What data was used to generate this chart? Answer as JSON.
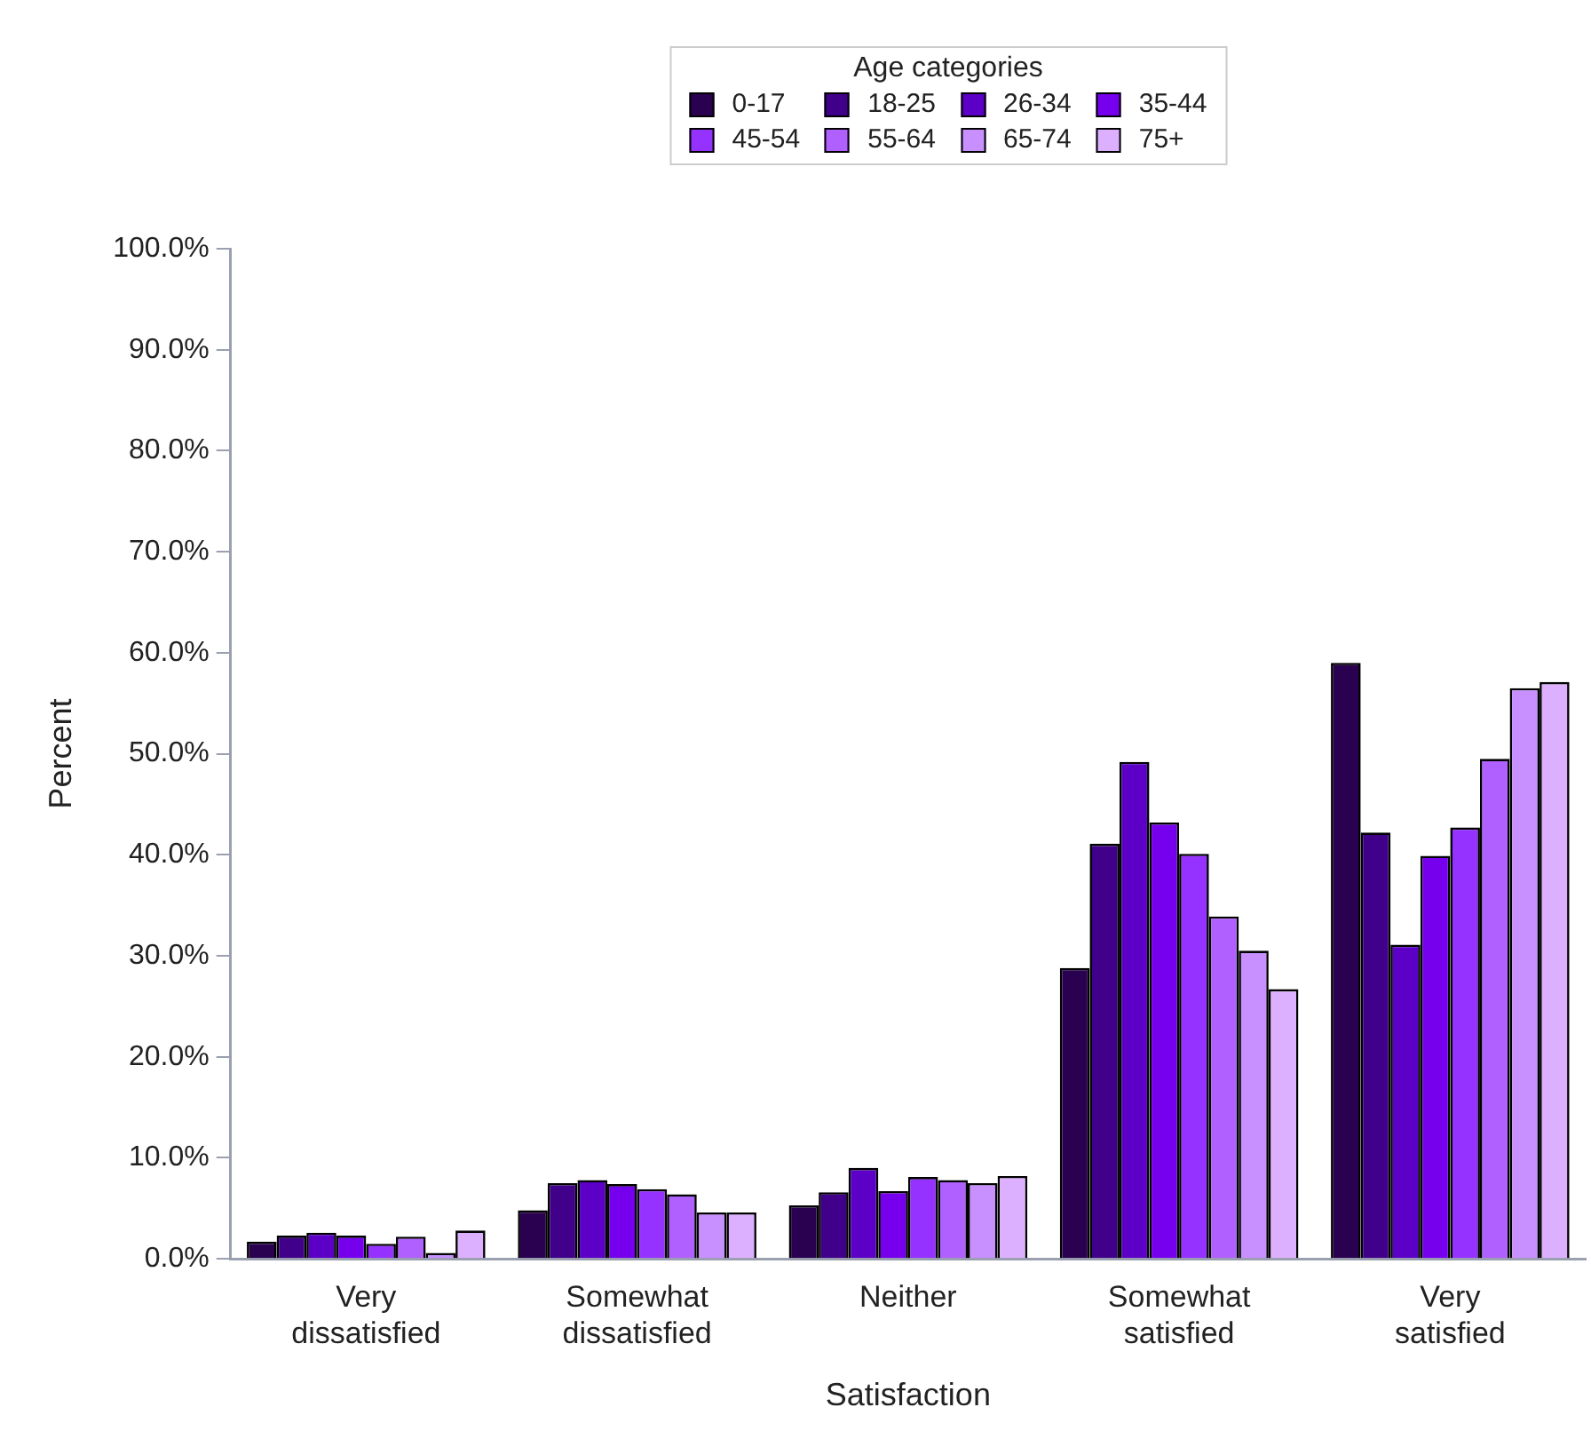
{
  "chart_data": {
    "type": "bar",
    "xlabel": "Satisfaction",
    "ylabel": "Percent",
    "legend_title": "Age categories",
    "legend": "top",
    "categories": [
      "Very dissatisfied",
      "Somewhat dissatisfied",
      "Neither",
      "Somewhat satisfied",
      "Very satisfied"
    ],
    "ylim": [
      0,
      100
    ],
    "yticks": [
      {
        "value": 0,
        "label": "0.0%"
      },
      {
        "value": 10,
        "label": "10.0%"
      },
      {
        "value": 20,
        "label": "20.0%"
      },
      {
        "value": 30,
        "label": "30.0%"
      },
      {
        "value": 40,
        "label": "40.0%"
      },
      {
        "value": 50,
        "label": "50.0%"
      },
      {
        "value": 60,
        "label": "60.0%"
      },
      {
        "value": 70,
        "label": "70.0%"
      },
      {
        "value": 80,
        "label": "80.0%"
      },
      {
        "value": 90,
        "label": "90.0%"
      },
      {
        "value": 100,
        "label": "100.0%"
      }
    ],
    "grid": false,
    "series": [
      {
        "name": "0-17",
        "color": "#2a0050",
        "values": [
          1.7,
          4.8,
          5.3,
          28.8,
          59.0
        ]
      },
      {
        "name": "18-25",
        "color": "#40008a",
        "values": [
          2.3,
          7.5,
          6.6,
          41.1,
          42.2
        ]
      },
      {
        "name": "26-34",
        "color": "#5c00c8",
        "values": [
          2.6,
          7.8,
          9.0,
          49.2,
          31.1
        ]
      },
      {
        "name": "35-44",
        "color": "#7600ee",
        "values": [
          2.3,
          7.4,
          6.7,
          43.2,
          39.9
        ]
      },
      {
        "name": "45-54",
        "color": "#9632ff",
        "values": [
          1.5,
          6.9,
          8.1,
          40.1,
          42.7
        ]
      },
      {
        "name": "55-64",
        "color": "#b060ff",
        "values": [
          2.2,
          6.4,
          7.8,
          33.9,
          49.5
        ]
      },
      {
        "name": "65-74",
        "color": "#c890ff",
        "values": [
          0.6,
          4.6,
          7.5,
          30.5,
          56.5
        ]
      },
      {
        "name": "75+",
        "color": "#dcb0ff",
        "values": [
          2.8,
          4.6,
          8.2,
          26.7,
          57.1
        ]
      }
    ]
  }
}
